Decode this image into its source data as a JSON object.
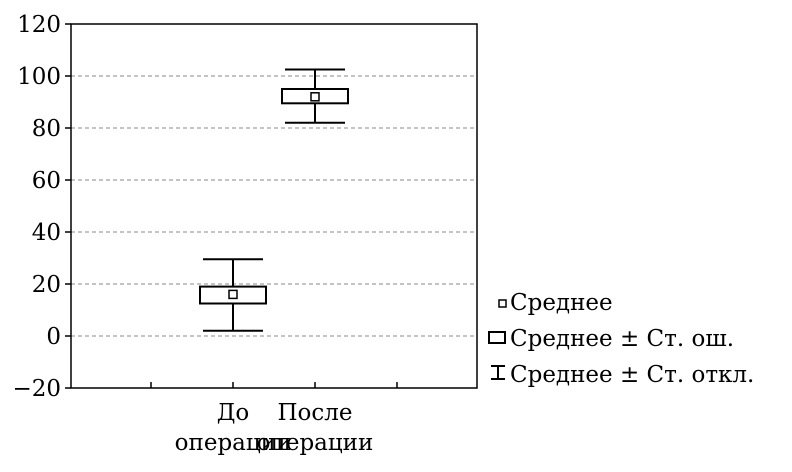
{
  "chart_data": {
    "type": "box",
    "title": "",
    "xlabel": "",
    "ylabel": "",
    "ylim": [
      -20,
      120
    ],
    "yticks": [
      -20,
      0,
      20,
      40,
      60,
      80,
      100,
      120
    ],
    "ytick_labels": [
      "−20",
      "0",
      "20",
      "40",
      "60",
      "80",
      "100",
      "120"
    ],
    "grid": "horizontal dashed",
    "categories": [
      {
        "line1": "До",
        "line2": "операции",
        "mean": 16,
        "se_low": 12.5,
        "se_high": 19,
        "sd_low": 2,
        "sd_high": 29.5
      },
      {
        "line1": "После",
        "line2": "операции",
        "mean": 92,
        "se_low": 89.5,
        "se_high": 95,
        "sd_low": 82,
        "sd_high": 102.5
      }
    ],
    "legend": {
      "position": "right-bottom",
      "items": [
        {
          "symbol": "mean",
          "label": "Среднее"
        },
        {
          "symbol": "se-box",
          "label": "Среднее ± Ст. ош."
        },
        {
          "symbol": "sd-whisker",
          "label": "Среднее ± Ст. откл."
        }
      ]
    }
  }
}
